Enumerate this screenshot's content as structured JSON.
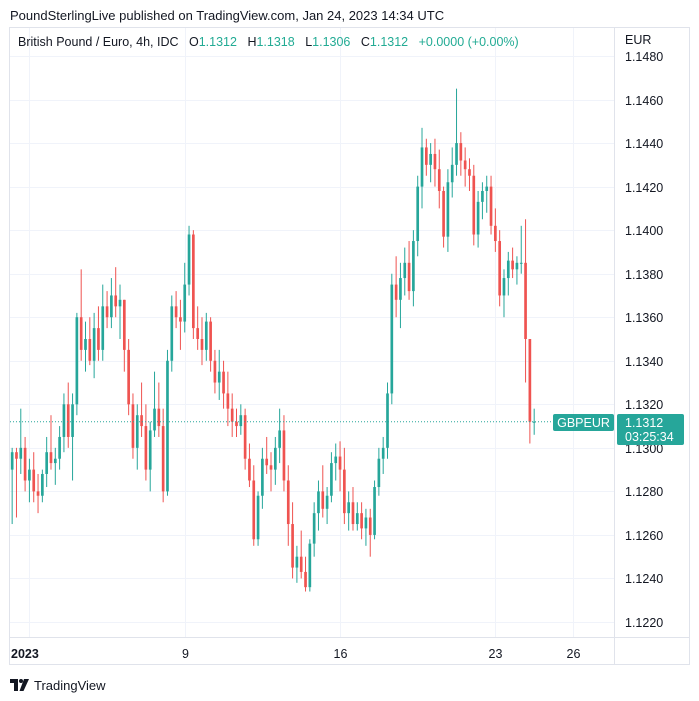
{
  "caption": "PoundSterlingLive published on TradingView.com, Jan 24, 2023 14:34 UTC",
  "legend": {
    "symbol": "British Pound / Euro, 4h, IDC",
    "o_label": "O",
    "o_value": "1.1312",
    "h_label": "H",
    "h_value": "1.1318",
    "l_label": "L",
    "l_value": "1.1306",
    "c_label": "C",
    "c_value": "1.1312",
    "change": "+0.0000 (+0.00%)"
  },
  "currency": "EUR",
  "price_badge": {
    "symbol": "GBPEUR",
    "price": "1.1312",
    "countdown": "03:25:34"
  },
  "footer": {
    "brand": "TradingView"
  },
  "colors": {
    "up": "#26a69a",
    "down": "#ef5350",
    "grid": "#f0f3fa",
    "badge": "#26a69a"
  },
  "chart_data": {
    "type": "candlestick",
    "timeframe": "4h",
    "y_ticks": [
      1.122,
      1.124,
      1.126,
      1.128,
      1.13,
      1.132,
      1.134,
      1.136,
      1.138,
      1.14,
      1.142,
      1.144,
      1.146,
      1.148
    ],
    "y_tick_labels": [
      "1.1220",
      "1.1240",
      "1.1260",
      "1.1280",
      "1.1300",
      "1.1320",
      "1.1340",
      "1.1360",
      "1.1380",
      "1.1400",
      "1.1420",
      "1.1440",
      "1.1460",
      "1.1480"
    ],
    "ylim": [
      1.1208,
      1.1485
    ],
    "x_ticks": [
      {
        "label": "2023",
        "index": 4,
        "bold": true
      },
      {
        "label": "9",
        "index": 40,
        "bold": false
      },
      {
        "label": "16",
        "index": 76,
        "bold": false
      },
      {
        "label": "23",
        "index": 112,
        "bold": false
      },
      {
        "label": "26",
        "index": 130,
        "bold": false
      }
    ],
    "x_range": [
      -0.5,
      139.5
    ],
    "last_price": 1.1312,
    "candles": [
      [
        1.129,
        1.13,
        1.1265,
        1.1298
      ],
      [
        1.1298,
        1.13,
        1.1268,
        1.1295
      ],
      [
        1.1295,
        1.1318,
        1.1288,
        1.13
      ],
      [
        1.13,
        1.1305,
        1.128,
        1.1285
      ],
      [
        1.1285,
        1.1295,
        1.1275,
        1.129
      ],
      [
        1.129,
        1.1298,
        1.1275,
        1.128
      ],
      [
        1.128,
        1.1288,
        1.127,
        1.1278
      ],
      [
        1.1278,
        1.129,
        1.1275,
        1.1288
      ],
      [
        1.1288,
        1.1305,
        1.1282,
        1.1298
      ],
      [
        1.1298,
        1.1315,
        1.129,
        1.1293
      ],
      [
        1.1293,
        1.13,
        1.1283,
        1.1295
      ],
      [
        1.1295,
        1.131,
        1.129,
        1.1305
      ],
      [
        1.1305,
        1.1325,
        1.1298,
        1.132
      ],
      [
        1.132,
        1.133,
        1.13,
        1.1305
      ],
      [
        1.1305,
        1.1325,
        1.1285,
        1.132
      ],
      [
        1.132,
        1.1362,
        1.1315,
        1.136
      ],
      [
        1.136,
        1.1382,
        1.134,
        1.1345
      ],
      [
        1.1345,
        1.1358,
        1.1335,
        1.135
      ],
      [
        1.135,
        1.136,
        1.1338,
        1.134
      ],
      [
        1.134,
        1.1362,
        1.1332,
        1.1355
      ],
      [
        1.1355,
        1.1365,
        1.134,
        1.1345
      ],
      [
        1.1345,
        1.1375,
        1.134,
        1.1365
      ],
      [
        1.1365,
        1.1372,
        1.1355,
        1.136
      ],
      [
        1.136,
        1.1378,
        1.1355,
        1.137
      ],
      [
        1.137,
        1.1383,
        1.136,
        1.1365
      ],
      [
        1.1365,
        1.1375,
        1.135,
        1.1368
      ],
      [
        1.1368,
        1.1368,
        1.1335,
        1.1345
      ],
      [
        1.1345,
        1.135,
        1.1315,
        1.132
      ],
      [
        1.132,
        1.1325,
        1.1295,
        1.13
      ],
      [
        1.13,
        1.132,
        1.129,
        1.1315
      ],
      [
        1.1315,
        1.133,
        1.1305,
        1.131
      ],
      [
        1.131,
        1.132,
        1.1285,
        1.129
      ],
      [
        1.129,
        1.1312,
        1.128,
        1.1308
      ],
      [
        1.1308,
        1.1335,
        1.1305,
        1.1318
      ],
      [
        1.1318,
        1.133,
        1.1305,
        1.131
      ],
      [
        1.131,
        1.1318,
        1.1275,
        1.128
      ],
      [
        1.128,
        1.1345,
        1.1278,
        1.134
      ],
      [
        1.134,
        1.137,
        1.1335,
        1.1365
      ],
      [
        1.1365,
        1.1372,
        1.1355,
        1.136
      ],
      [
        1.136,
        1.1368,
        1.1345,
        1.1358
      ],
      [
        1.1358,
        1.1385,
        1.1353,
        1.1375
      ],
      [
        1.1375,
        1.1402,
        1.137,
        1.1398
      ],
      [
        1.1398,
        1.14,
        1.135,
        1.1355
      ],
      [
        1.1355,
        1.1365,
        1.1345,
        1.135
      ],
      [
        1.135,
        1.136,
        1.1338,
        1.1345
      ],
      [
        1.1345,
        1.1362,
        1.134,
        1.1358
      ],
      [
        1.1358,
        1.136,
        1.1335,
        1.134
      ],
      [
        1.134,
        1.1345,
        1.1325,
        1.133
      ],
      [
        1.133,
        1.1345,
        1.1322,
        1.1335
      ],
      [
        1.1335,
        1.134,
        1.1318,
        1.1325
      ],
      [
        1.1325,
        1.1335,
        1.131,
        1.1318
      ],
      [
        1.1318,
        1.1325,
        1.1305,
        1.1312
      ],
      [
        1.1312,
        1.1318,
        1.1305,
        1.131
      ],
      [
        1.131,
        1.132,
        1.1306,
        1.1315
      ],
      [
        1.1315,
        1.1318,
        1.129,
        1.1295
      ],
      [
        1.1295,
        1.1302,
        1.1282,
        1.1285
      ],
      [
        1.1285,
        1.1292,
        1.1255,
        1.1258
      ],
      [
        1.1258,
        1.128,
        1.1255,
        1.1278
      ],
      [
        1.1278,
        1.13,
        1.1272,
        1.1295
      ],
      [
        1.1295,
        1.1305,
        1.1288,
        1.1292
      ],
      [
        1.1292,
        1.1298,
        1.128,
        1.129
      ],
      [
        1.129,
        1.1305,
        1.1283,
        1.13
      ],
      [
        1.13,
        1.1318,
        1.1293,
        1.1308
      ],
      [
        1.1308,
        1.1315,
        1.128,
        1.1285
      ],
      [
        1.1285,
        1.1292,
        1.1255,
        1.1265
      ],
      [
        1.1265,
        1.1275,
        1.124,
        1.1245
      ],
      [
        1.1245,
        1.1255,
        1.1238,
        1.125
      ],
      [
        1.125,
        1.1262,
        1.124,
        1.1243
      ],
      [
        1.1243,
        1.125,
        1.1234,
        1.1236
      ],
      [
        1.1236,
        1.1258,
        1.1234,
        1.1256
      ],
      [
        1.1256,
        1.1275,
        1.125,
        1.127
      ],
      [
        1.127,
        1.1285,
        1.1262,
        1.128
      ],
      [
        1.128,
        1.1292,
        1.1268,
        1.1272
      ],
      [
        1.1272,
        1.1282,
        1.1265,
        1.1278
      ],
      [
        1.1278,
        1.1298,
        1.1275,
        1.1293
      ],
      [
        1.1293,
        1.1302,
        1.1285,
        1.1296
      ],
      [
        1.1296,
        1.1303,
        1.128,
        1.129
      ],
      [
        1.129,
        1.13,
        1.1265,
        1.127
      ],
      [
        1.127,
        1.128,
        1.1262,
        1.1275
      ],
      [
        1.1275,
        1.1282,
        1.1262,
        1.1265
      ],
      [
        1.1265,
        1.1275,
        1.1262,
        1.127
      ],
      [
        1.127,
        1.1275,
        1.1258,
        1.1263
      ],
      [
        1.1263,
        1.1272,
        1.1255,
        1.1268
      ],
      [
        1.1268,
        1.1272,
        1.125,
        1.126
      ],
      [
        1.126,
        1.1285,
        1.1258,
        1.1282
      ],
      [
        1.1282,
        1.13,
        1.1278,
        1.1295
      ],
      [
        1.1295,
        1.1305,
        1.1288,
        1.13
      ],
      [
        1.13,
        1.133,
        1.1295,
        1.1325
      ],
      [
        1.1325,
        1.138,
        1.132,
        1.1375
      ],
      [
        1.1375,
        1.1388,
        1.136,
        1.1368
      ],
      [
        1.1368,
        1.1385,
        1.1355,
        1.1378
      ],
      [
        1.1378,
        1.1392,
        1.137,
        1.1385
      ],
      [
        1.1385,
        1.1395,
        1.1368,
        1.1372
      ],
      [
        1.1372,
        1.14,
        1.1365,
        1.1395
      ],
      [
        1.1395,
        1.1425,
        1.1388,
        1.142
      ],
      [
        1.142,
        1.1447,
        1.141,
        1.1438
      ],
      [
        1.1438,
        1.1442,
        1.1425,
        1.143
      ],
      [
        1.143,
        1.144,
        1.1422,
        1.1435
      ],
      [
        1.1435,
        1.1442,
        1.142,
        1.1428
      ],
      [
        1.1428,
        1.1437,
        1.141,
        1.1418
      ],
      [
        1.1418,
        1.142,
        1.1392,
        1.1397
      ],
      [
        1.1397,
        1.1428,
        1.139,
        1.1422
      ],
      [
        1.1422,
        1.1438,
        1.1415,
        1.143
      ],
      [
        1.143,
        1.1465,
        1.1425,
        1.144
      ],
      [
        1.144,
        1.1445,
        1.1425,
        1.1432
      ],
      [
        1.1432,
        1.1438,
        1.142,
        1.1428
      ],
      [
        1.1428,
        1.1433,
        1.1418,
        1.1425
      ],
      [
        1.1425,
        1.143,
        1.1393,
        1.1398
      ],
      [
        1.1398,
        1.1418,
        1.1392,
        1.1413
      ],
      [
        1.1413,
        1.1422,
        1.1405,
        1.1418
      ],
      [
        1.1418,
        1.1425,
        1.1408,
        1.142
      ],
      [
        1.142,
        1.1425,
        1.1398,
        1.1402
      ],
      [
        1.1402,
        1.141,
        1.139,
        1.1395
      ],
      [
        1.1395,
        1.14,
        1.1365,
        1.137
      ],
      [
        1.137,
        1.1382,
        1.136,
        1.1378
      ],
      [
        1.1378,
        1.139,
        1.137,
        1.1386
      ],
      [
        1.1386,
        1.1392,
        1.1378,
        1.1382
      ],
      [
        1.1382,
        1.1388,
        1.1375,
        1.1385
      ],
      [
        1.1385,
        1.1402,
        1.138,
        1.1385
      ],
      [
        1.1385,
        1.1405,
        1.133,
        1.135
      ],
      [
        1.135,
        1.135,
        1.1302,
        1.1312
      ],
      [
        1.1312,
        1.1318,
        1.1306,
        1.1312
      ]
    ]
  }
}
